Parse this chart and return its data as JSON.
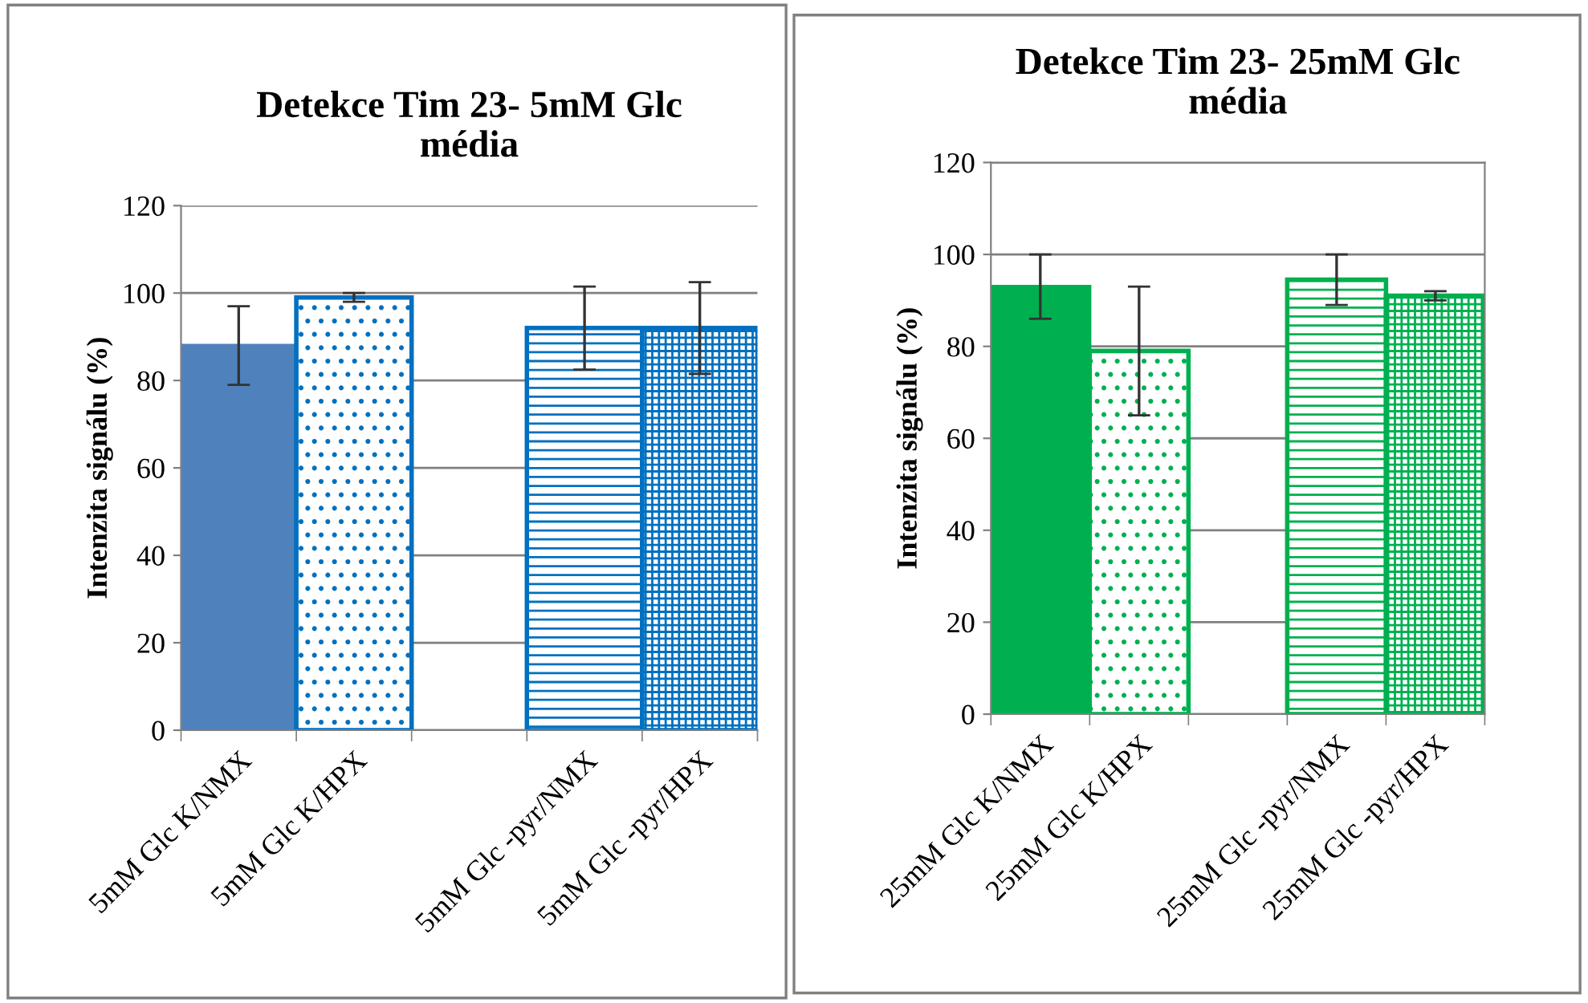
{
  "chart_data": [
    {
      "type": "bar",
      "title": "Detekce Tim 23- 5mM Glc\nmédia",
      "ylabel": "Intenzita signálu (%)",
      "categories": [
        "5mM Glc K/NMX",
        "5mM Glc K/HPX",
        null,
        "5mM Glc -pyr/NMX",
        "5mM Glc -pyr/HPX"
      ],
      "values": [
        88,
        99,
        null,
        92,
        92
      ],
      "errors": [
        9,
        1,
        null,
        9.5,
        10.5
      ],
      "colors": [
        "#4f81bd",
        "#0070c0",
        null,
        "#0070c0",
        "#0070c0"
      ],
      "ylim": [
        0,
        120
      ],
      "yticks": [
        0,
        20,
        40,
        60,
        80,
        100,
        120
      ],
      "grid": "y"
    },
    {
      "type": "bar",
      "title": "Detekce Tim 23- 25mM Glc\nmédia",
      "ylabel": "Intenzita signálu (%)",
      "categories": [
        "25mM Glc K/NMX",
        "25mM Glc K/HPX",
        null,
        "25mM Glc -pyr/NMX",
        "25mM Glc -pyr/HPX"
      ],
      "values": [
        93,
        79,
        null,
        94.5,
        91
      ],
      "errors": [
        7,
        14,
        null,
        5.5,
        1
      ],
      "colors": [
        "#00b050",
        "#00b050",
        null,
        "#00b050",
        "#00b050"
      ],
      "ylim": [
        0,
        120
      ],
      "yticks": [
        0,
        20,
        40,
        60,
        80,
        100,
        120
      ],
      "grid": "y"
    }
  ]
}
